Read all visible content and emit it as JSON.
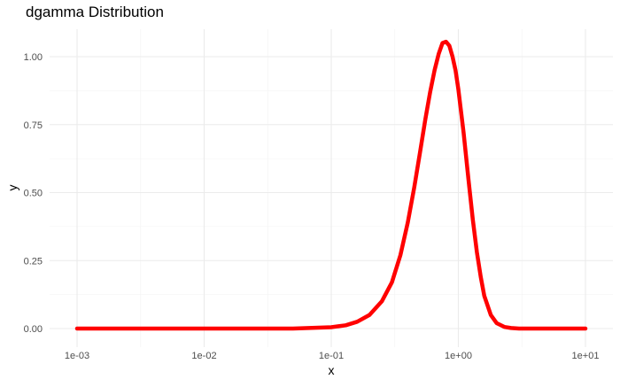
{
  "chart_data": {
    "type": "line",
    "title": "dgamma Distribution",
    "xlabel": "x",
    "ylabel": "y",
    "x_scale": "log10",
    "xlim": [
      0.001,
      10
    ],
    "ylim": [
      0,
      1.05
    ],
    "x_ticks": [
      0.001,
      0.01,
      0.1,
      1,
      10
    ],
    "x_tick_labels": [
      "1e-03",
      "1e-02",
      "1e-01",
      "1e+00",
      "1e+01"
    ],
    "y_ticks": [
      0,
      0.25,
      0.5,
      0.75,
      1.0
    ],
    "y_tick_labels": [
      "0.00",
      "0.25",
      "0.50",
      "0.75",
      "1.00"
    ],
    "grid": true,
    "legend": "none",
    "series": [
      {
        "color": "#ff0000",
        "x": [
          0.001,
          0.01,
          0.05,
          0.1,
          0.13,
          0.16,
          0.2,
          0.25,
          0.3,
          0.35,
          0.4,
          0.45,
          0.5,
          0.55,
          0.6,
          0.65,
          0.7,
          0.75,
          0.8,
          0.85,
          0.9,
          0.95,
          1.0,
          1.1,
          1.2,
          1.3,
          1.4,
          1.5,
          1.6,
          1.8,
          2.0,
          2.3,
          2.6,
          3.0,
          3.5,
          4.0,
          5.0,
          10.0
        ],
        "y": [
          0.0,
          0.0,
          0.0,
          0.005,
          0.012,
          0.025,
          0.05,
          0.1,
          0.17,
          0.27,
          0.39,
          0.52,
          0.65,
          0.77,
          0.87,
          0.95,
          1.01,
          1.05,
          1.055,
          1.04,
          1.0,
          0.95,
          0.88,
          0.72,
          0.55,
          0.4,
          0.28,
          0.19,
          0.12,
          0.05,
          0.02,
          0.006,
          0.002,
          0.0,
          0.0,
          0.0,
          0.0,
          0.0
        ]
      }
    ]
  }
}
